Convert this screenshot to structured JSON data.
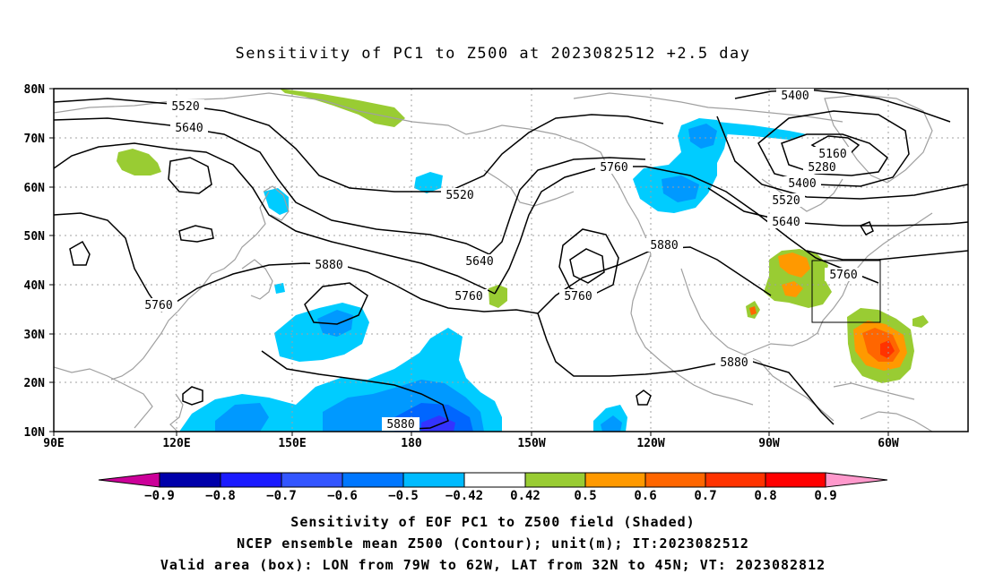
{
  "title": "Sensitivity of PC1 to Z500 at 2023082512 +2.5 day",
  "map": {
    "lat_ticks": [
      "80N",
      "70N",
      "60N",
      "50N",
      "40N",
      "30N",
      "20N",
      "10N"
    ],
    "lon_ticks": [
      "90E",
      "120E",
      "150E",
      "180",
      "150W",
      "120W",
      "90W",
      "60W"
    ],
    "contour_labels": [
      "5400",
      "5520",
      "5640",
      "5160",
      "5280",
      "5400",
      "5520",
      "5640",
      "5760",
      "5520",
      "5880",
      "5640",
      "5760",
      "5760",
      "5880",
      "5760",
      "5760",
      "5880",
      "5880"
    ],
    "colors": {
      "coastline": "#a0a0a0",
      "contour": "#000000",
      "pos_050": "#99cc33",
      "pos_060": "#ff9900",
      "pos_070": "#ff6600",
      "pos_080": "#ff3300",
      "neg_042": "#00ccff",
      "neg_050": "#0099ff",
      "neg_060": "#0066ff",
      "neg_070": "#3333ff"
    }
  },
  "colorbar": {
    "labels": [
      "−0.9",
      "−0.8",
      "−0.7",
      "−0.6",
      "−0.5",
      "−0.42",
      "0.42",
      "0.5",
      "0.6",
      "0.7",
      "0.8",
      "0.9"
    ],
    "colors": [
      "#0000aa",
      "#1a1aff",
      "#3355ff",
      "#0077ff",
      "#00bbff",
      "#ffffff",
      "#99cc33",
      "#ff9900",
      "#ff6600",
      "#ff3300",
      "#ff0000"
    ],
    "low_end": "#cc0099",
    "high_end": "#ff99cc"
  },
  "footer": {
    "line1": "Sensitivity of EOF PC1 to Z500 field (Shaded)",
    "line2": "NCEP ensemble mean Z500 (Contour); unit(m); IT:2023082512",
    "line3": "Valid area (box): LON from 79W to 62W, LAT from 32N to 45N; VT: 2023082812"
  }
}
